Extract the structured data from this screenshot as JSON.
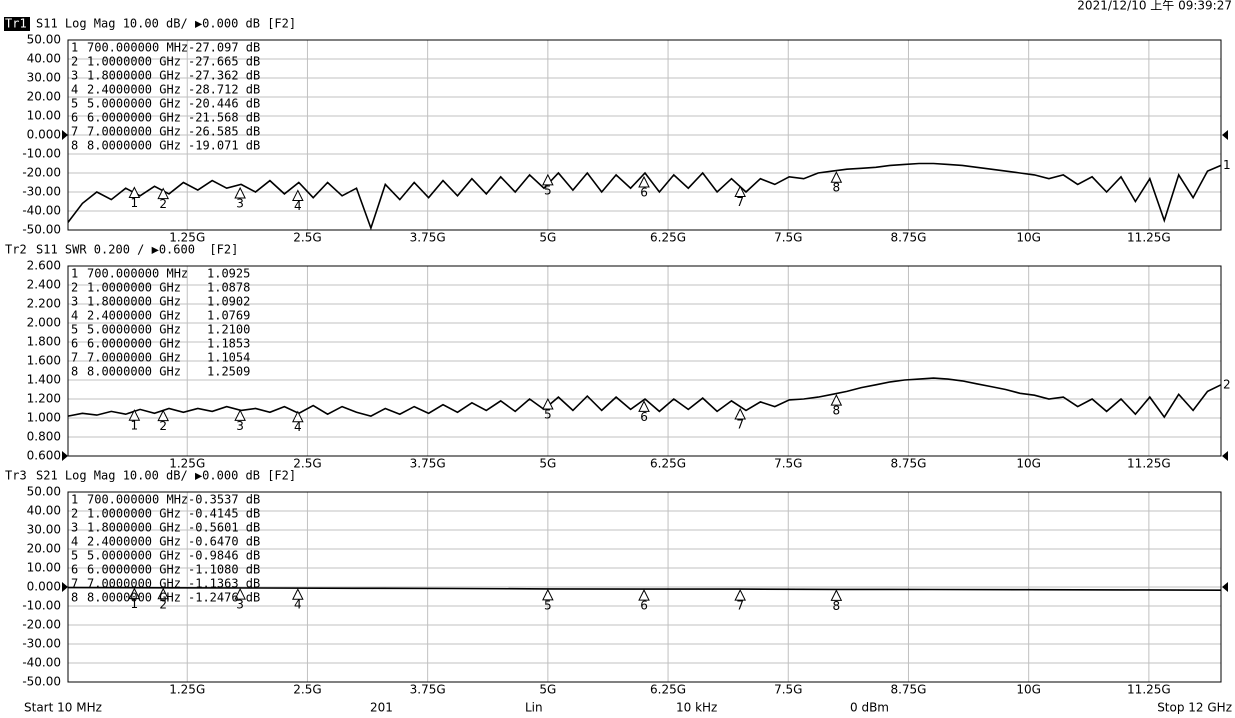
{
  "header": {
    "datetime": "2021/12/10 上午 09:39:27"
  },
  "footer": {
    "start": "Start 10 MHz",
    "points": "201",
    "sweep": "Lin",
    "ifbw": "10 kHz",
    "power": "0 dBm",
    "stop": "Stop 12 GHz"
  },
  "chart_data": [
    {
      "type": "line",
      "trace_label": "Tr1",
      "active": true,
      "title": "S11 Log Mag 10.00 dB/ ▶0.000 dB [F2]",
      "color": "#000000",
      "grid": true,
      "ref_level": 0,
      "trace_end_label": "1",
      "xlim": [
        0.01,
        12
      ],
      "ylim": [
        -50,
        50
      ],
      "xticks": [
        {
          "value": 1.25,
          "label": "1.25G"
        },
        {
          "value": 2.5,
          "label": "2.5G"
        },
        {
          "value": 3.75,
          "label": "3.75G"
        },
        {
          "value": 5,
          "label": "5G"
        },
        {
          "value": 6.25,
          "label": "6.25G"
        },
        {
          "value": 7.5,
          "label": "7.5G"
        },
        {
          "value": 8.75,
          "label": "8.75G"
        },
        {
          "value": 10,
          "label": "10G"
        },
        {
          "value": 11.25,
          "label": "11.25G"
        }
      ],
      "yticks": [
        {
          "value": 50,
          "label": "50.00"
        },
        {
          "value": 40,
          "label": "40.00"
        },
        {
          "value": 30,
          "label": "30.00"
        },
        {
          "value": 20,
          "label": "20.00"
        },
        {
          "value": 10,
          "label": "10.00"
        },
        {
          "value": 0,
          "label": "0.000"
        },
        {
          "value": -10,
          "label": "-10.00"
        },
        {
          "value": -20,
          "label": "-20.00"
        },
        {
          "value": -30,
          "label": "-30.00"
        },
        {
          "value": -40,
          "label": "-40.00"
        },
        {
          "value": -50,
          "label": "-50.00"
        }
      ],
      "x": [
        0.01,
        0.16,
        0.31,
        0.46,
        0.61,
        0.76,
        0.91,
        1.06,
        1.21,
        1.36,
        1.51,
        1.66,
        1.81,
        1.96,
        2.11,
        2.26,
        2.41,
        2.56,
        2.71,
        2.86,
        3.01,
        3.16,
        3.31,
        3.46,
        3.61,
        3.76,
        3.91,
        4.06,
        4.21,
        4.36,
        4.51,
        4.66,
        4.81,
        4.96,
        5.11,
        5.26,
        5.41,
        5.56,
        5.71,
        5.86,
        6.01,
        6.16,
        6.31,
        6.46,
        6.61,
        6.76,
        6.91,
        7.06,
        7.21,
        7.36,
        7.51,
        7.66,
        7.81,
        7.96,
        8.11,
        8.26,
        8.41,
        8.56,
        8.71,
        8.86,
        9.01,
        9.16,
        9.31,
        9.46,
        9.61,
        9.76,
        9.91,
        10.06,
        10.21,
        10.36,
        10.51,
        10.66,
        10.81,
        10.96,
        11.11,
        11.26,
        11.41,
        11.56,
        11.71,
        11.86,
        12.0
      ],
      "values": [
        -46,
        -36,
        -30,
        -34,
        -28,
        -32,
        -27,
        -31,
        -25,
        -29,
        -24,
        -28,
        -26,
        -30,
        -24,
        -31,
        -25,
        -33,
        -25,
        -32,
        -28,
        -49,
        -26,
        -34,
        -25,
        -33,
        -24,
        -32,
        -23,
        -31,
        -22,
        -30,
        -21,
        -28,
        -20,
        -29,
        -20,
        -30,
        -21,
        -28,
        -20,
        -30,
        -21,
        -28,
        -20,
        -30,
        -23,
        -30,
        -23,
        -26,
        -22,
        -23,
        -20,
        -19,
        -18,
        -17.5,
        -17,
        -16,
        -15.5,
        -15,
        -15,
        -15.5,
        -16,
        -17,
        -18,
        -19,
        -20,
        -21,
        -23,
        -21,
        -26,
        -22,
        -30,
        -22,
        -35,
        -23,
        -45,
        -21,
        -33,
        -19,
        -16
      ],
      "markers": [
        {
          "name": "1",
          "x": 0.7,
          "x_label": "700.000000 MHz",
          "y": -27.097,
          "y_label": "-27.097 dB"
        },
        {
          "name": "2",
          "x": 1.0,
          "x_label": "1.0000000 GHz",
          "y": -27.665,
          "y_label": "-27.665 dB"
        },
        {
          "name": "3",
          "x": 1.8,
          "x_label": "1.8000000 GHz",
          "y": -27.362,
          "y_label": "-27.362 dB"
        },
        {
          "name": "4",
          "x": 2.4,
          "x_label": "2.4000000 GHz",
          "y": -28.712,
          "y_label": "-28.712 dB"
        },
        {
          "name": "5",
          "x": 5.0,
          "x_label": "5.0000000 GHz",
          "y": -20.446,
          "y_label": "-20.446 dB"
        },
        {
          "name": "6",
          "x": 6.0,
          "x_label": "6.0000000 GHz",
          "y": -21.568,
          "y_label": "-21.568 dB"
        },
        {
          "name": "7",
          "x": 7.0,
          "x_label": "7.0000000 GHz",
          "y": -26.585,
          "y_label": "-26.585 dB"
        },
        {
          "name": "8",
          "x": 8.0,
          "x_label": "8.0000000 GHz",
          "y": -19.071,
          "y_label": "-19.071 dB"
        }
      ]
    },
    {
      "type": "line",
      "trace_label": "Tr2",
      "title": "S11 SWR 0.200 / ▶0.600  [F2]",
      "color": "#000000",
      "grid": true,
      "ref_level": 0.6,
      "trace_end_label": "2",
      "xlim": [
        0.01,
        12
      ],
      "ylim": [
        0.6,
        2.6
      ],
      "xticks": [
        {
          "value": 1.25,
          "label": "1.25G"
        },
        {
          "value": 2.5,
          "label": "2.5G"
        },
        {
          "value": 3.75,
          "label": "3.75G"
        },
        {
          "value": 5,
          "label": "5G"
        },
        {
          "value": 6.25,
          "label": "6.25G"
        },
        {
          "value": 7.5,
          "label": "7.5G"
        },
        {
          "value": 8.75,
          "label": "8.75G"
        },
        {
          "value": 10,
          "label": "10G"
        },
        {
          "value": 11.25,
          "label": "11.25G"
        }
      ],
      "yticks": [
        {
          "value": 2.6,
          "label": "2.600"
        },
        {
          "value": 2.4,
          "label": "2.400"
        },
        {
          "value": 2.2,
          "label": "2.200"
        },
        {
          "value": 2.0,
          "label": "2.000"
        },
        {
          "value": 1.8,
          "label": "1.800"
        },
        {
          "value": 1.6,
          "label": "1.600"
        },
        {
          "value": 1.4,
          "label": "1.400"
        },
        {
          "value": 1.2,
          "label": "1.200"
        },
        {
          "value": 1.0,
          "label": "1.000"
        },
        {
          "value": 0.8,
          "label": "0.800"
        },
        {
          "value": 0.6,
          "label": "0.600"
        }
      ],
      "x": [
        0.01,
        0.16,
        0.31,
        0.46,
        0.61,
        0.76,
        0.91,
        1.06,
        1.21,
        1.36,
        1.51,
        1.66,
        1.81,
        1.96,
        2.11,
        2.26,
        2.41,
        2.56,
        2.71,
        2.86,
        3.01,
        3.16,
        3.31,
        3.46,
        3.61,
        3.76,
        3.91,
        4.06,
        4.21,
        4.36,
        4.51,
        4.66,
        4.81,
        4.96,
        5.11,
        5.26,
        5.41,
        5.56,
        5.71,
        5.86,
        6.01,
        6.16,
        6.31,
        6.46,
        6.61,
        6.76,
        6.91,
        7.06,
        7.21,
        7.36,
        7.51,
        7.66,
        7.81,
        7.96,
        8.11,
        8.26,
        8.41,
        8.56,
        8.71,
        8.86,
        9.01,
        9.16,
        9.31,
        9.46,
        9.61,
        9.76,
        9.91,
        10.06,
        10.21,
        10.36,
        10.51,
        10.66,
        10.81,
        10.96,
        11.11,
        11.26,
        11.41,
        11.56,
        11.71,
        11.86,
        12.0
      ],
      "values": [
        1.02,
        1.05,
        1.03,
        1.07,
        1.04,
        1.09,
        1.05,
        1.1,
        1.06,
        1.1,
        1.07,
        1.12,
        1.08,
        1.1,
        1.06,
        1.12,
        1.05,
        1.13,
        1.04,
        1.12,
        1.06,
        1.02,
        1.1,
        1.04,
        1.12,
        1.05,
        1.14,
        1.06,
        1.16,
        1.08,
        1.18,
        1.07,
        1.2,
        1.09,
        1.22,
        1.08,
        1.23,
        1.08,
        1.22,
        1.09,
        1.2,
        1.07,
        1.2,
        1.09,
        1.21,
        1.07,
        1.18,
        1.08,
        1.17,
        1.12,
        1.19,
        1.2,
        1.22,
        1.25,
        1.28,
        1.32,
        1.35,
        1.38,
        1.4,
        1.41,
        1.42,
        1.41,
        1.39,
        1.36,
        1.33,
        1.3,
        1.26,
        1.24,
        1.2,
        1.22,
        1.12,
        1.2,
        1.07,
        1.2,
        1.04,
        1.22,
        1.01,
        1.25,
        1.08,
        1.28,
        1.35
      ],
      "markers": [
        {
          "name": "1",
          "x": 0.7,
          "x_label": "700.000000 MHz",
          "y": 1.0925,
          "y_label": "1.0925"
        },
        {
          "name": "2",
          "x": 1.0,
          "x_label": "1.0000000 GHz",
          "y": 1.0878,
          "y_label": "1.0878"
        },
        {
          "name": "3",
          "x": 1.8,
          "x_label": "1.8000000 GHz",
          "y": 1.0902,
          "y_label": "1.0902"
        },
        {
          "name": "4",
          "x": 2.4,
          "x_label": "2.4000000 GHz",
          "y": 1.0769,
          "y_label": "1.0769"
        },
        {
          "name": "5",
          "x": 5.0,
          "x_label": "5.0000000 GHz",
          "y": 1.21,
          "y_label": "1.2100"
        },
        {
          "name": "6",
          "x": 6.0,
          "x_label": "6.0000000 GHz",
          "y": 1.1853,
          "y_label": "1.1853"
        },
        {
          "name": "7",
          "x": 7.0,
          "x_label": "7.0000000 GHz",
          "y": 1.1054,
          "y_label": "1.1054"
        },
        {
          "name": "8",
          "x": 8.0,
          "x_label": "8.0000000 GHz",
          "y": 1.2509,
          "y_label": "1.2509"
        }
      ]
    },
    {
      "type": "line",
      "trace_label": "Tr3",
      "title": "S21 Log Mag 10.00 dB/ ▶0.000 dB [F2]",
      "color": "#000000",
      "grid": true,
      "ref_level": 0,
      "xlim": [
        0.01,
        12
      ],
      "ylim": [
        -50,
        50
      ],
      "xticks": [
        {
          "value": 1.25,
          "label": "1.25G"
        },
        {
          "value": 2.5,
          "label": "2.5G"
        },
        {
          "value": 3.75,
          "label": "3.75G"
        },
        {
          "value": 5,
          "label": "5G"
        },
        {
          "value": 6.25,
          "label": "6.25G"
        },
        {
          "value": 7.5,
          "label": "7.5G"
        },
        {
          "value": 8.75,
          "label": "8.75G"
        },
        {
          "value": 10,
          "label": "10G"
        },
        {
          "value": 11.25,
          "label": "11.25G"
        }
      ],
      "yticks": [
        {
          "value": 50,
          "label": "50.00"
        },
        {
          "value": 40,
          "label": "40.00"
        },
        {
          "value": 30,
          "label": "30.00"
        },
        {
          "value": 20,
          "label": "20.00"
        },
        {
          "value": 10,
          "label": "10.00"
        },
        {
          "value": 0,
          "label": "0.000"
        },
        {
          "value": -10,
          "label": "-10.00"
        },
        {
          "value": -20,
          "label": "-20.00"
        },
        {
          "value": -30,
          "label": "-30.00"
        },
        {
          "value": -40,
          "label": "-40.00"
        },
        {
          "value": -50,
          "label": "-50.00"
        }
      ],
      "x": [
        0.01,
        1,
        2,
        3,
        4,
        5,
        6,
        7,
        8,
        9,
        10,
        11,
        12
      ],
      "values": [
        -0.3,
        -0.41,
        -0.55,
        -0.68,
        -0.8,
        -0.98,
        -1.1,
        -1.13,
        -1.25,
        -1.3,
        -1.4,
        -1.5,
        -1.7
      ],
      "markers": [
        {
          "name": "1",
          "x": 0.7,
          "x_label": "700.000000 MHz",
          "y": -0.3537,
          "y_label": "-0.3537 dB"
        },
        {
          "name": "2",
          "x": 1.0,
          "x_label": "1.0000000 GHz",
          "y": -0.4145,
          "y_label": "-0.4145 dB"
        },
        {
          "name": "3",
          "x": 1.8,
          "x_label": "1.8000000 GHz",
          "y": -0.5601,
          "y_label": "-0.5601 dB"
        },
        {
          "name": "4",
          "x": 2.4,
          "x_label": "2.4000000 GHz",
          "y": -0.647,
          "y_label": "-0.6470 dB"
        },
        {
          "name": "5",
          "x": 5.0,
          "x_label": "5.0000000 GHz",
          "y": -0.9846,
          "y_label": "-0.9846 dB"
        },
        {
          "name": "6",
          "x": 6.0,
          "x_label": "6.0000000 GHz",
          "y": -1.108,
          "y_label": "-1.1080 dB"
        },
        {
          "name": "7",
          "x": 7.0,
          "x_label": "7.0000000 GHz",
          "y": -1.1363,
          "y_label": "-1.1363 dB"
        },
        {
          "name": "8",
          "x": 8.0,
          "x_label": "8.0000000 GHz",
          "y": -1.2476,
          "y_label": "-1.2476 dB"
        }
      ]
    }
  ]
}
